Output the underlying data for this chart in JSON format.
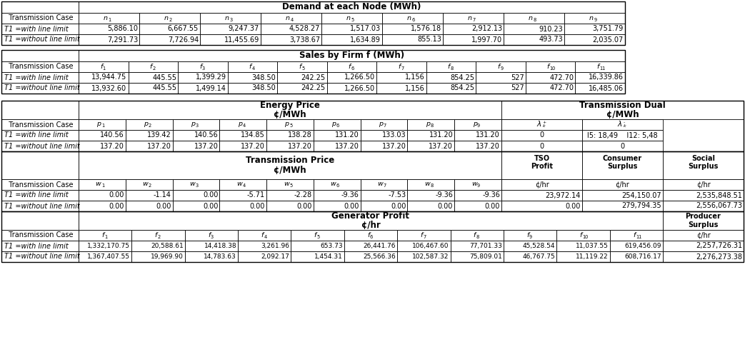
{
  "demand_header": "Demand at each Node (MWh)",
  "demand_node_subs": [
    "1",
    "2",
    "3",
    "4",
    "5",
    "6",
    "7",
    "8",
    "9"
  ],
  "demand_rows": [
    [
      "T1 =with line limit",
      "5,886.10",
      "6,667.55",
      "9,247.37",
      "4,528.27",
      "1,517.03",
      "1,576.18",
      "2,912.13",
      "910.23",
      "3,751.79"
    ],
    [
      "T1 =without line limit",
      "7,291.73",
      "7,726.94",
      "11,455.69",
      "3,738.67",
      "1,634.89",
      "855.13",
      "1,997.70",
      "493.73",
      "2,035.07"
    ]
  ],
  "sales_header": "Sales by Firm f (MWh)",
  "sales_firm_subs": [
    "1",
    "2",
    "3",
    "4",
    "5",
    "6",
    "7",
    "8",
    "9",
    "10",
    "11"
  ],
  "sales_rows": [
    [
      "T1 =with line limit",
      "13,944.75",
      "445.55",
      "1,399.29",
      "348.50",
      "242.25",
      "1,266.50",
      "1,156",
      "854.25",
      "527",
      "472.70",
      "16,339.86"
    ],
    [
      "T1 =without line limit",
      "13,932.60",
      "445.55",
      "1,499.14",
      "348.50",
      "242.25",
      "1,266.50",
      "1,156",
      "854.25",
      "527",
      "472.70",
      "16,485.06"
    ]
  ],
  "ep_h1": "Energy Price",
  "ep_h2": "¢/MWh",
  "ep_p_subs": [
    "1",
    "2",
    "3",
    "4",
    "5",
    "6",
    "7",
    "8",
    "9"
  ],
  "ep_rows": [
    [
      "T1 =with line limit",
      "140.56",
      "139.42",
      "140.56",
      "134.85",
      "138.28",
      "131.20",
      "133.03",
      "131.20",
      "131.20"
    ],
    [
      "T1 =without line limit",
      "137.20",
      "137.20",
      "137.20",
      "137.20",
      "137.20",
      "137.20",
      "137.20",
      "137.20",
      "137.20"
    ]
  ],
  "td_h1": "Transmission Dual",
  "td_h2": "¢/MWh",
  "td_rows": [
    [
      "0",
      "l5: 18,49    l12: 5,48"
    ],
    [
      "0",
      "0"
    ]
  ],
  "tp_h1": "Transmission Price",
  "tp_h2": "¢/MWh",
  "tp_w_subs": [
    "1",
    "2",
    "3",
    "4",
    "5",
    "6",
    "7",
    "8",
    "9"
  ],
  "tp_rows": [
    [
      "T1 =with line limit",
      "0.00",
      "-1.14",
      "0.00",
      "-5.71",
      "-2.28",
      "-9.36",
      "-7.53",
      "-9.36",
      "-9.36"
    ],
    [
      "T1 =without line limit",
      "0.00",
      "0.00",
      "0.00",
      "0.00",
      "0.00",
      "0.00",
      "0.00",
      "0.00",
      "0.00"
    ]
  ],
  "tso_h1": "TSO",
  "tso_h2": "Profit",
  "cs_h1": "Consumer",
  "cs_h2": "Surplus",
  "ss_h1": "Social",
  "ss_h2": "Surplus",
  "tsc_unit": "¢/hr",
  "tsc_rows": [
    [
      "23,972.14",
      "254,150.07",
      "2,535,848.51"
    ],
    [
      "0.00",
      "279,794.35",
      "2,556,067.73"
    ]
  ],
  "gp_h1": "Generator Profit",
  "gp_h2": "¢/hr",
  "gp_f_subs": [
    "1",
    "2",
    "3",
    "4",
    "5",
    "6",
    "7",
    "8",
    "9",
    "10",
    "11"
  ],
  "ps_h1": "Producer",
  "ps_h2": "Surplus",
  "ps_unit": "¢/hr",
  "gp_rows": [
    [
      "T1 =with line limit",
      "1,332,170.75",
      "20,588.61",
      "14,418.38",
      "3,261.96",
      "653.73",
      "26,441.76",
      "106,467.60",
      "77,701.33",
      "45,528.54",
      "11,037.55",
      "619,456.09",
      "2,257,726.31"
    ],
    [
      "T1 =without line limit",
      "1,367,407.55",
      "19,969.90",
      "14,783.63",
      "2,092.17",
      "1,454.31",
      "25,566.36",
      "102,587.32",
      "75,809.01",
      "46,767.75",
      "11,119.22",
      "608,716.17",
      "2,276,273.38"
    ]
  ]
}
